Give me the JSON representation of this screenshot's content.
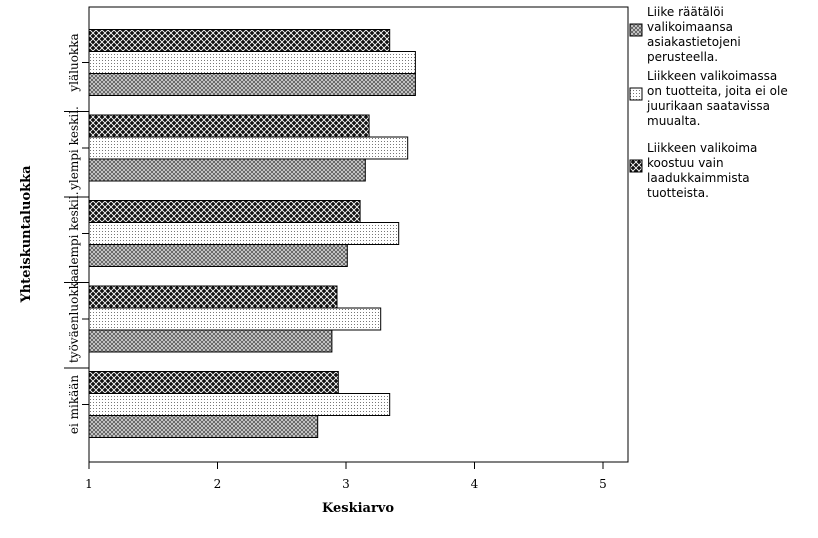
{
  "chart_data": {
    "type": "bar",
    "orientation": "horizontal",
    "title": "",
    "xlabel": "Keskiarvo",
    "ylabel": "Yhteiskuntaluokka",
    "xlim": [
      1,
      5.2
    ],
    "xticks": [
      1,
      2,
      3,
      4,
      5
    ],
    "grid": false,
    "legend_position": "right",
    "categories": [
      "yläluokka",
      "ylempi keskil.",
      "alempi keskil.",
      "työväenluokka",
      "ei mikään"
    ],
    "series": [
      {
        "name": "Liikkeen valikoima koostuu vain laadukkaimmista tuotteista.",
        "legend_lines": [
          "Liikkeen valikoima",
          "koostuu vain",
          "laadukkaimmista",
          "tuotteista."
        ],
        "pattern": "dark-crosshatch",
        "values": [
          3.34,
          3.18,
          3.11,
          2.93,
          2.94
        ]
      },
      {
        "name": "Liikkeen valikoimassa on tuotteita, joita ei ole juurikaan saatavissa muualta.",
        "legend_lines": [
          "Liikkeen valikoimassa",
          "on tuotteita, joita ei ole",
          "juurikaan saatavissa",
          "muualta."
        ],
        "pattern": "dotted",
        "values": [
          3.54,
          3.48,
          3.41,
          3.27,
          3.34
        ]
      },
      {
        "name": "Liike räätälöi valikoimaansa asiakastietojeni perusteella.",
        "legend_lines": [
          "Liike räätälöi",
          "valikoimaansa",
          "asiakastietojeni",
          "perusteella."
        ],
        "pattern": "light-crosshatch",
        "values": [
          3.54,
          3.15,
          3.01,
          2.89,
          2.78
        ]
      }
    ],
    "legend_order": [
      2,
      1,
      0
    ]
  }
}
